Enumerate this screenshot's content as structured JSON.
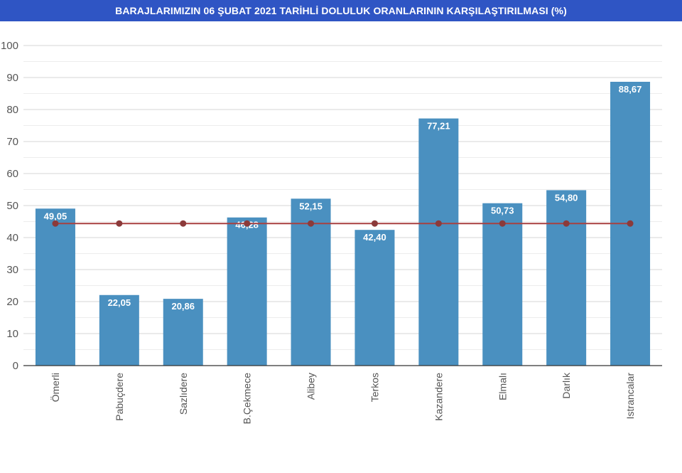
{
  "title": "BARAJLARIMIZIN 06 ŞUBAT 2021 TARİHLİ DOLULUK ORANLARININ KARŞILAŞTIRILMASI (%)",
  "chart_data": {
    "type": "bar",
    "title": "BARAJLARIMIZIN 06 ŞUBAT 2021 TARİHLİ DOLULUK ORANLARININ KARŞILAŞTIRILMASI (%)",
    "categories": [
      "Ömerli",
      "Pabuçdere",
      "Sazlıdere",
      "B.Çekmece",
      "Alibey",
      "Terkos",
      "Kazandere",
      "Elmalı",
      "Darlık",
      "Istrancalar"
    ],
    "values": [
      49.05,
      22.05,
      20.86,
      46.28,
      52.15,
      42.4,
      77.21,
      50.73,
      54.8,
      88.67
    ],
    "value_labels": [
      "49,05",
      "22,05",
      "20,86",
      "46,28",
      "52,15",
      "42,40",
      "77,21",
      "50,73",
      "54,80",
      "88,67"
    ],
    "average_line": {
      "value": 44.4
    },
    "ylim": [
      0,
      100
    ],
    "yticks": [
      0,
      10,
      20,
      30,
      40,
      50,
      60,
      70,
      80,
      90,
      100
    ],
    "xlabel": "",
    "ylabel": "",
    "grid": true,
    "colors": {
      "bar": "#4a90c0",
      "line": "#a84040",
      "marker": "#8b3a3a",
      "title_bg": "#2f55c4",
      "grid": "#d9d9d9"
    }
  }
}
